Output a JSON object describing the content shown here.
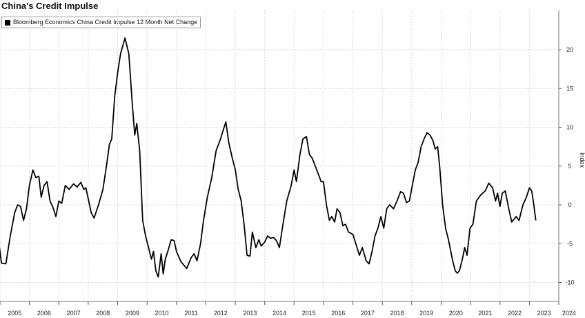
{
  "chart_data": {
    "type": "line",
    "title": "China's Credit Impulse",
    "ylabel": "Index",
    "xlabel": "",
    "ylim": [
      -12.5,
      24.5
    ],
    "yticks": [
      20,
      15,
      10,
      5,
      0,
      -5,
      -10
    ],
    "xticks": [
      "2005",
      "2006",
      "2007",
      "2008",
      "2009",
      "2010",
      "2011",
      "2012",
      "2013",
      "2014",
      "2015",
      "2016",
      "2017",
      "2018",
      "2019",
      "2020",
      "2021",
      "2022",
      "2023",
      "2024"
    ],
    "grid": true,
    "legend_position": "top-left",
    "series": [
      {
        "name": "Bloomberg Economics China Credit Impulse 12 Month Net Change",
        "color": "#000000",
        "points": [
          [
            2004.85,
            -6.5
          ],
          [
            2004.95,
            -4.5
          ],
          [
            2005.05,
            -7.5
          ],
          [
            2005.2,
            -7.6
          ],
          [
            2005.35,
            -4.0
          ],
          [
            2005.5,
            -1.0
          ],
          [
            2005.6,
            0.0
          ],
          [
            2005.7,
            -0.2
          ],
          [
            2005.8,
            -2.0
          ],
          [
            2005.9,
            -0.5
          ],
          [
            2006.0,
            2.5
          ],
          [
            2006.12,
            4.5
          ],
          [
            2006.22,
            3.5
          ],
          [
            2006.32,
            3.7
          ],
          [
            2006.4,
            1.0
          ],
          [
            2006.5,
            2.5
          ],
          [
            2006.6,
            3.0
          ],
          [
            2006.7,
            0.5
          ],
          [
            2006.8,
            -0.3
          ],
          [
            2006.9,
            -1.5
          ],
          [
            2007.0,
            0.5
          ],
          [
            2007.1,
            0.2
          ],
          [
            2007.22,
            2.5
          ],
          [
            2007.35,
            2.0
          ],
          [
            2007.5,
            2.7
          ],
          [
            2007.62,
            2.3
          ],
          [
            2007.75,
            2.9
          ],
          [
            2007.85,
            2.0
          ],
          [
            2007.92,
            2.2
          ],
          [
            2008.0,
            0.8
          ],
          [
            2008.1,
            -1.0
          ],
          [
            2008.2,
            -1.7
          ],
          [
            2008.35,
            0.0
          ],
          [
            2008.5,
            2.0
          ],
          [
            2008.62,
            5.0
          ],
          [
            2008.72,
            7.8
          ],
          [
            2008.8,
            8.5
          ],
          [
            2008.9,
            14.0
          ],
          [
            2009.0,
            17.0
          ],
          [
            2009.1,
            19.5
          ],
          [
            2009.25,
            21.5
          ],
          [
            2009.38,
            19.5
          ],
          [
            2009.5,
            13.0
          ],
          [
            2009.58,
            9.0
          ],
          [
            2009.65,
            10.5
          ],
          [
            2009.75,
            7.0
          ],
          [
            2009.85,
            -2.0
          ],
          [
            2009.95,
            -4.0
          ],
          [
            2010.05,
            -5.5
          ],
          [
            2010.15,
            -7.0
          ],
          [
            2010.22,
            -6.0
          ],
          [
            2010.3,
            -8.5
          ],
          [
            2010.38,
            -9.3
          ],
          [
            2010.48,
            -6.3
          ],
          [
            2010.55,
            -8.9
          ],
          [
            2010.62,
            -7.0
          ],
          [
            2010.72,
            -5.8
          ],
          [
            2010.82,
            -4.5
          ],
          [
            2010.92,
            -4.6
          ],
          [
            2011.0,
            -6.0
          ],
          [
            2011.15,
            -7.3
          ],
          [
            2011.35,
            -8.2
          ],
          [
            2011.5,
            -6.8
          ],
          [
            2011.6,
            -6.3
          ],
          [
            2011.7,
            -7.2
          ],
          [
            2011.82,
            -5.0
          ],
          [
            2011.92,
            -2.0
          ],
          [
            2012.05,
            1.0
          ],
          [
            2012.2,
            3.5
          ],
          [
            2012.35,
            7.0
          ],
          [
            2012.5,
            8.5
          ],
          [
            2012.58,
            9.5
          ],
          [
            2012.68,
            10.7
          ],
          [
            2012.78,
            8.0
          ],
          [
            2012.9,
            6.0
          ],
          [
            2013.0,
            4.5
          ],
          [
            2013.1,
            2.0
          ],
          [
            2013.2,
            0.5
          ],
          [
            2013.3,
            -2.5
          ],
          [
            2013.4,
            -6.5
          ],
          [
            2013.5,
            -6.6
          ],
          [
            2013.58,
            -3.5
          ],
          [
            2013.7,
            -5.5
          ],
          [
            2013.8,
            -4.5
          ],
          [
            2013.88,
            -5.3
          ],
          [
            2014.0,
            -4.8
          ],
          [
            2014.1,
            -4.0
          ],
          [
            2014.2,
            -4.3
          ],
          [
            2014.3,
            -4.2
          ],
          [
            2014.4,
            -4.6
          ],
          [
            2014.5,
            -5.5
          ],
          [
            2014.6,
            -3.0
          ],
          [
            2014.75,
            0.5
          ],
          [
            2014.9,
            2.5
          ],
          [
            2015.0,
            4.5
          ],
          [
            2015.08,
            3.0
          ],
          [
            2015.2,
            6.5
          ],
          [
            2015.3,
            8.5
          ],
          [
            2015.42,
            8.8
          ],
          [
            2015.52,
            6.5
          ],
          [
            2015.62,
            6.0
          ],
          [
            2015.72,
            5.0
          ],
          [
            2015.82,
            4.0
          ],
          [
            2015.92,
            3.0
          ],
          [
            2016.0,
            3.0
          ],
          [
            2016.1,
            0.0
          ],
          [
            2016.2,
            -2.0
          ],
          [
            2016.28,
            -1.5
          ],
          [
            2016.38,
            -2.2
          ],
          [
            2016.46,
            -0.5
          ],
          [
            2016.56,
            -1.0
          ],
          [
            2016.66,
            -2.7
          ],
          [
            2016.75,
            -2.5
          ],
          [
            2016.85,
            -3.5
          ],
          [
            2017.0,
            -3.8
          ],
          [
            2017.1,
            -5.0
          ],
          [
            2017.22,
            -6.5
          ],
          [
            2017.32,
            -5.5
          ],
          [
            2017.45,
            -7.2
          ],
          [
            2017.55,
            -7.6
          ],
          [
            2017.65,
            -6.0
          ],
          [
            2017.75,
            -4.0
          ],
          [
            2017.85,
            -3.0
          ],
          [
            2017.95,
            -1.5
          ],
          [
            2018.05,
            -3.0
          ],
          [
            2018.15,
            -0.5
          ],
          [
            2018.25,
            0.0
          ],
          [
            2018.38,
            -0.5
          ],
          [
            2018.5,
            0.5
          ],
          [
            2018.62,
            1.7
          ],
          [
            2018.72,
            1.5
          ],
          [
            2018.82,
            0.3
          ],
          [
            2018.92,
            0.5
          ],
          [
            2019.02,
            2.5
          ],
          [
            2019.12,
            4.5
          ],
          [
            2019.22,
            5.5
          ],
          [
            2019.32,
            7.5
          ],
          [
            2019.42,
            8.5
          ],
          [
            2019.52,
            9.3
          ],
          [
            2019.62,
            9.0
          ],
          [
            2019.72,
            8.3
          ],
          [
            2019.8,
            7.2
          ],
          [
            2019.88,
            7.5
          ],
          [
            2019.95,
            5.0
          ],
          [
            2020.05,
            0.0
          ],
          [
            2020.15,
            -3.0
          ],
          [
            2020.25,
            -4.5
          ],
          [
            2020.38,
            -7.0
          ],
          [
            2020.48,
            -8.5
          ],
          [
            2020.55,
            -8.8
          ],
          [
            2020.62,
            -8.5
          ],
          [
            2020.72,
            -7.0
          ],
          [
            2020.8,
            -5.5
          ],
          [
            2020.88,
            -6.5
          ],
          [
            2020.98,
            -3.0
          ],
          [
            2021.08,
            -2.5
          ],
          [
            2021.2,
            0.5
          ],
          [
            2021.35,
            1.3
          ],
          [
            2021.5,
            1.8
          ],
          [
            2021.62,
            2.8
          ],
          [
            2021.75,
            2.2
          ],
          [
            2021.85,
            0.5
          ],
          [
            2021.92,
            1.5
          ],
          [
            2022.0,
            -0.2
          ],
          [
            2022.08,
            1.5
          ],
          [
            2022.18,
            1.8
          ],
          [
            2022.3,
            -0.5
          ],
          [
            2022.4,
            -2.2
          ],
          [
            2022.55,
            -1.5
          ],
          [
            2022.65,
            -2.0
          ],
          [
            2022.78,
            0.0
          ],
          [
            2022.9,
            1.0
          ],
          [
            2023.0,
            2.2
          ],
          [
            2023.08,
            1.8
          ],
          [
            2023.15,
            0.0
          ],
          [
            2023.22,
            -2.0
          ]
        ]
      }
    ]
  }
}
